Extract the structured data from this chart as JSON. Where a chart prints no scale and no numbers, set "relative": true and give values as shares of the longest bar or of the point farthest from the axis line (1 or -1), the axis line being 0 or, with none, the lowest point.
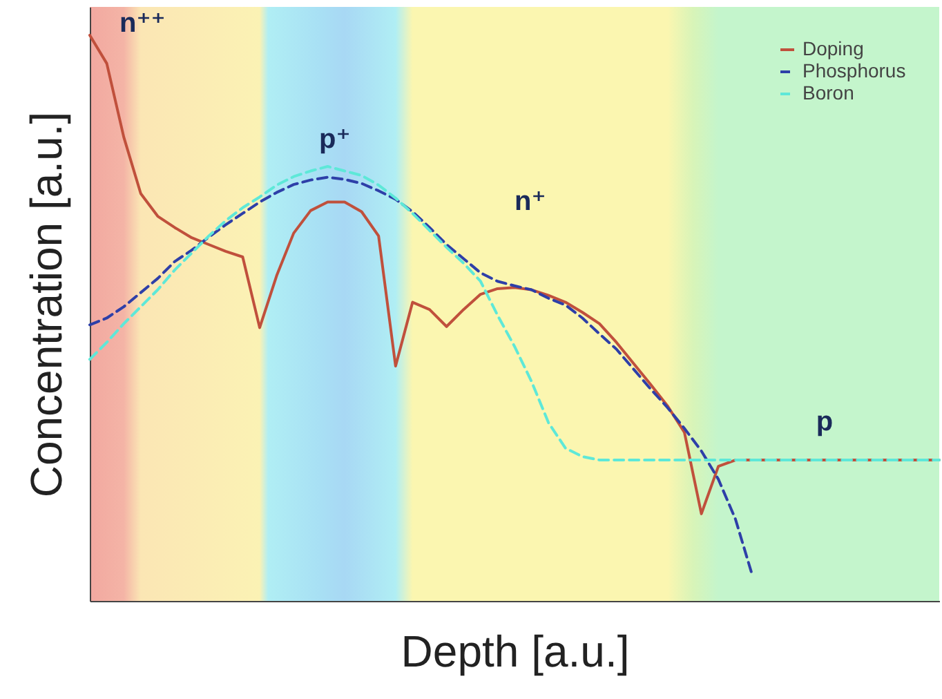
{
  "chart_data": {
    "type": "line",
    "relative": true,
    "xlabel": "Depth [a.u.]",
    "ylabel": "Concentration [a.u.]",
    "legend": "top right",
    "categories": [
      null,
      null,
      null,
      null,
      null,
      null,
      null,
      null,
      null,
      null,
      null,
      null,
      null,
      null,
      null,
      null,
      null,
      null,
      null,
      null,
      null,
      null,
      null,
      null,
      null,
      null,
      null,
      null,
      null,
      null,
      null,
      null,
      null,
      null,
      null,
      null,
      null,
      null,
      null,
      null,
      null,
      null,
      null,
      null,
      null,
      null,
      null,
      null,
      null,
      null,
      null
    ],
    "series": [
      {
        "name": "Doping",
        "color": "#c0503c",
        "line_style": "solid",
        "values": [
          1.0,
          0.95,
          0.82,
          0.72,
          0.68,
          0.66,
          0.642,
          0.63,
          0.618,
          0.608,
          0.483,
          0.575,
          0.65,
          0.69,
          0.705,
          0.705,
          0.688,
          0.645,
          0.415,
          0.528,
          0.515,
          0.485,
          0.515,
          0.542,
          0.552,
          0.554,
          0.55,
          0.54,
          0.528,
          0.51,
          0.49,
          0.457,
          0.42,
          0.383,
          0.345,
          0.298,
          0.154,
          0.238,
          0.249,
          0.249,
          0.249,
          0.249,
          0.249,
          0.249,
          0.249,
          0.249,
          0.249,
          0.249,
          0.249,
          0.249,
          0.249
        ]
      },
      {
        "name": "Phosphorus",
        "color": "#2e3fa8",
        "line_style": "dashed",
        "values": [
          0.488,
          0.5,
          0.52,
          0.545,
          0.57,
          0.6,
          0.62,
          0.643,
          0.665,
          0.685,
          0.705,
          0.722,
          0.736,
          0.744,
          0.749,
          0.745,
          0.738,
          0.725,
          0.71,
          0.688,
          0.66,
          0.63,
          0.605,
          0.58,
          0.565,
          0.557,
          0.55,
          0.535,
          0.523,
          0.5,
          0.472,
          0.445,
          0.41,
          0.375,
          0.342,
          0.305,
          0.265,
          0.215,
          0.145,
          0.045,
          null,
          null,
          null,
          null,
          null,
          null,
          null,
          null,
          null,
          null,
          null
        ]
      },
      {
        "name": "Boron",
        "color": "#5ee8d8",
        "line_style": "dashed",
        "values": [
          0.427,
          0.457,
          0.49,
          0.52,
          0.55,
          0.585,
          0.615,
          0.645,
          0.672,
          0.695,
          0.714,
          0.735,
          0.75,
          0.76,
          0.768,
          0.76,
          0.752,
          0.735,
          0.712,
          0.685,
          0.655,
          0.625,
          0.597,
          0.565,
          0.505,
          0.45,
          0.388,
          0.315,
          0.27,
          0.255,
          0.249,
          0.249,
          0.249,
          0.249,
          0.249,
          0.249,
          0.249,
          0.249,
          0.249,
          0.249,
          0.249,
          0.249,
          0.249,
          0.249,
          0.249,
          0.249,
          0.249,
          0.249,
          0.249,
          0.249,
          0.249
        ]
      }
    ],
    "annotations": [
      "n⁺⁺",
      "p⁺",
      "n⁺",
      "p"
    ]
  }
}
